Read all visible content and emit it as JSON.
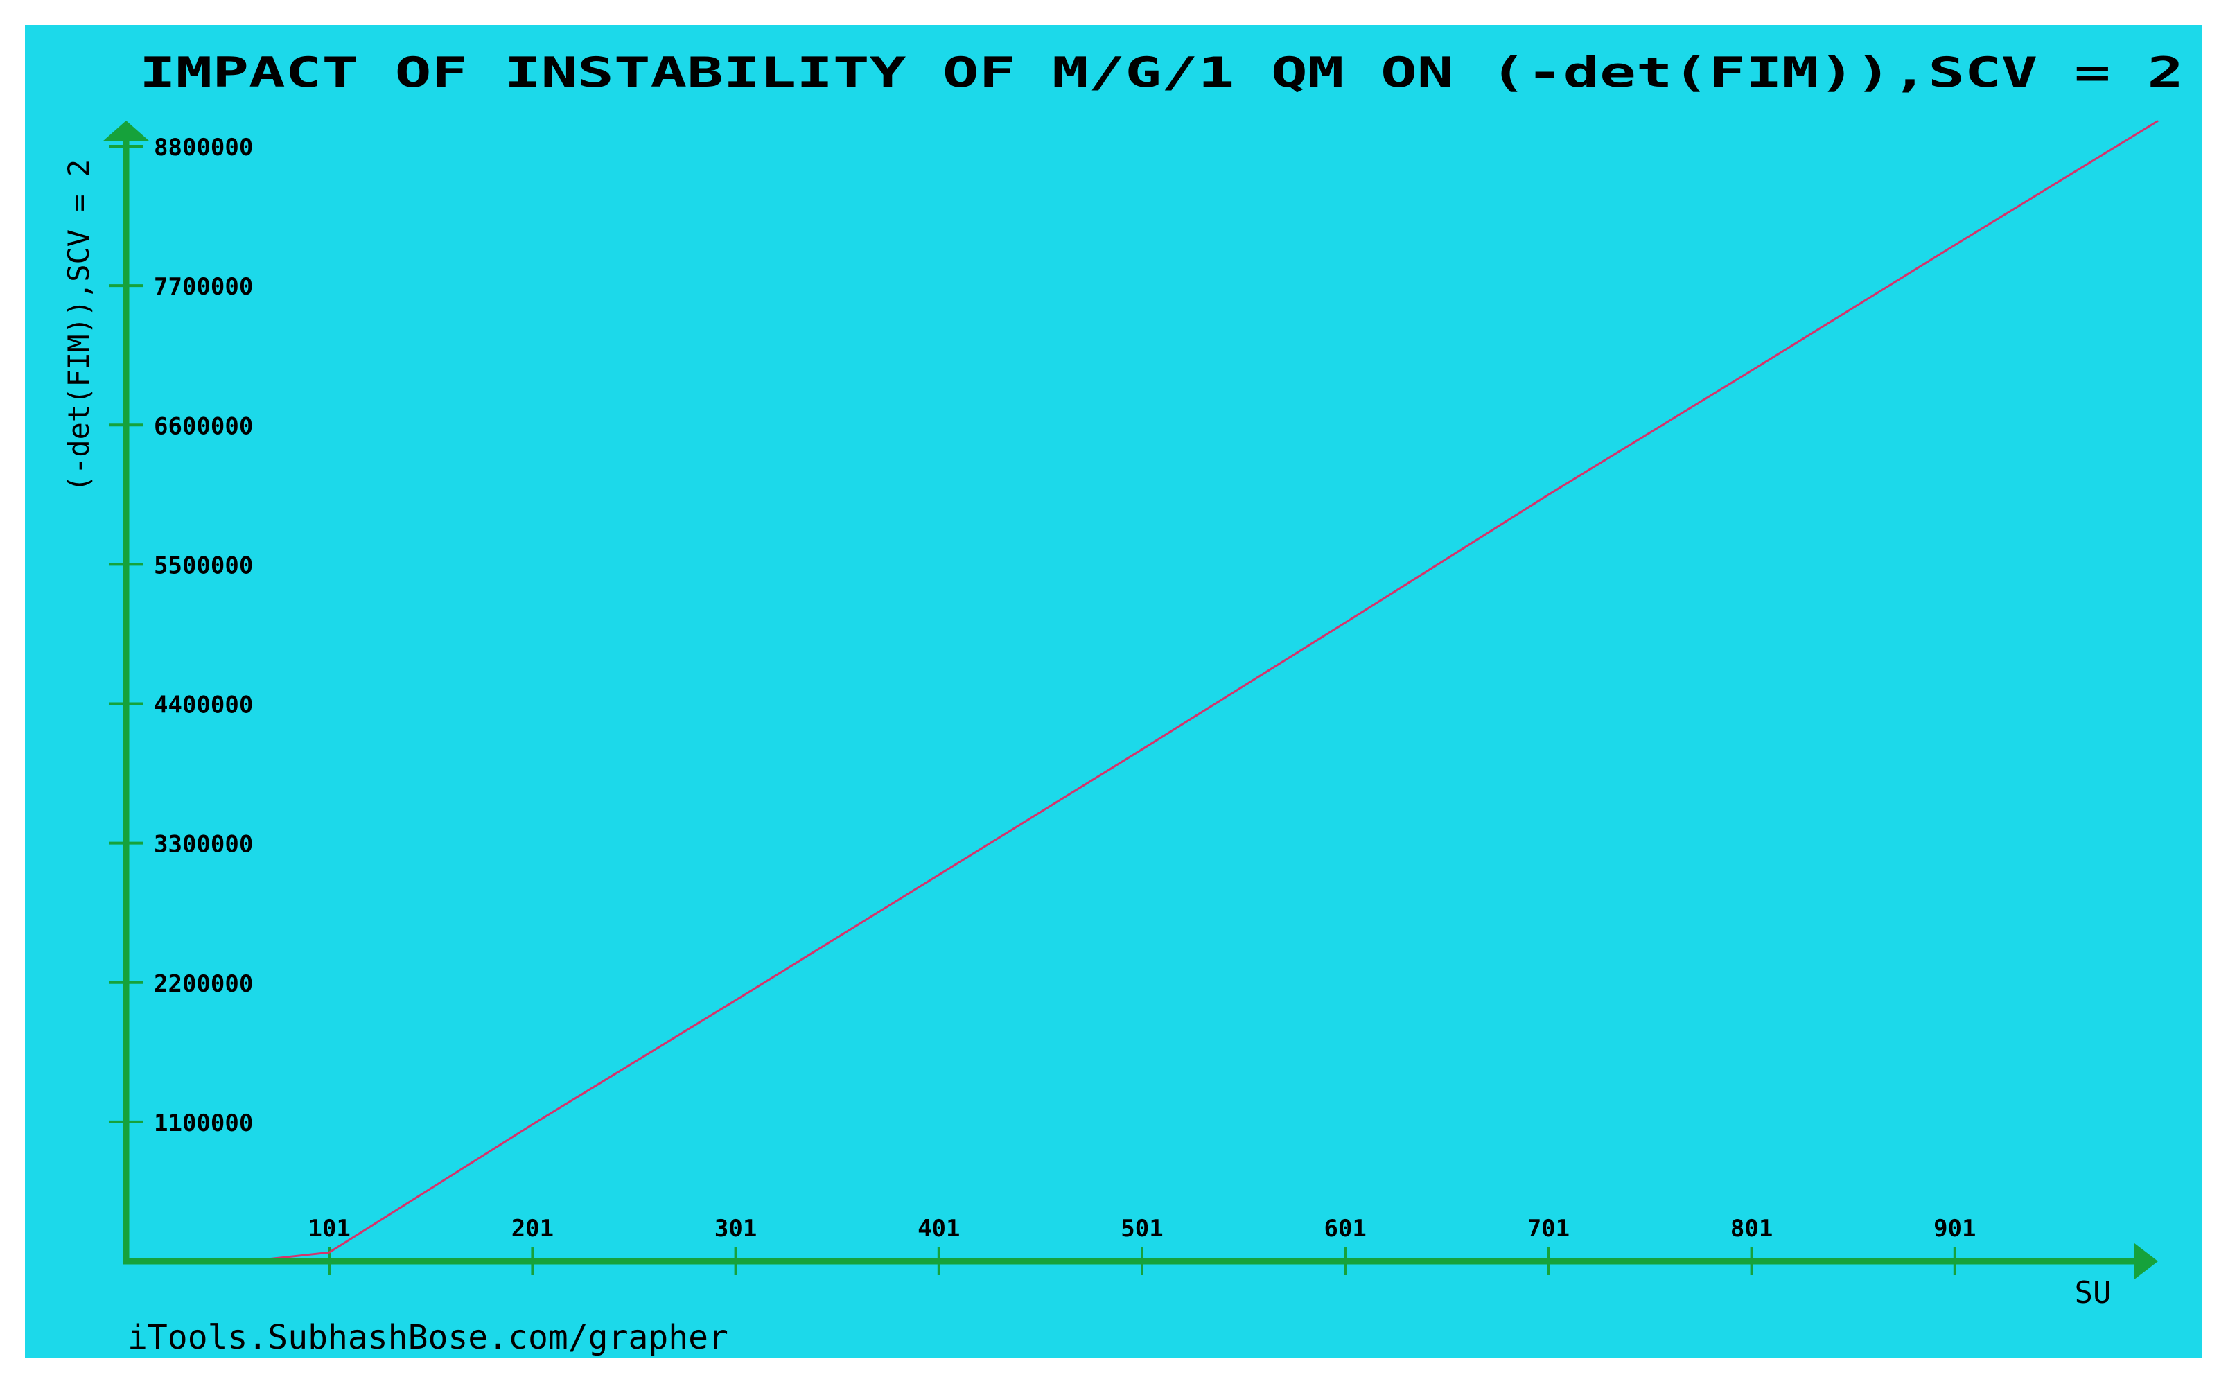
{
  "colors": {
    "page_background": "#ffffff",
    "plot_background": "#1cd9ea",
    "axis": "#16a23b",
    "line": "#d6336b",
    "text": "#000000"
  },
  "chart_data": {
    "type": "line",
    "title": "IMPACT OF INSTABILITY OF M/G/1 QM ON (-det(FIM)),SCV = 2",
    "xlabel": "SU",
    "ylabel": "(-det(FIM)),SCV = 2",
    "footer": "iTools.SubhashBose.com/grapher",
    "xlim": [
      1,
      1001
    ],
    "ylim": [
      0,
      8800000
    ],
    "x_ticks": [
      101,
      201,
      301,
      401,
      501,
      601,
      701,
      801,
      901
    ],
    "x_tick_labels": [
      "101",
      "201",
      "301",
      "401",
      "501",
      "601",
      "701",
      "801",
      "901"
    ],
    "y_ticks": [
      1100000,
      2200000,
      3300000,
      4400000,
      5500000,
      6600000,
      7700000,
      8800000
    ],
    "y_tick_labels": [
      "1100000",
      "2200000",
      "3300000",
      "4400000",
      "5500000",
      "6600000",
      "7700000",
      "8800000"
    ],
    "grid": false,
    "legend": "none",
    "series": [
      {
        "x": [
          1,
          61,
          101,
          201,
          301,
          401,
          501,
          601,
          701,
          801,
          901,
          1001
        ],
        "values": [
          0,
          0,
          70000,
          1080000,
          2060000,
          3050000,
          4040000,
          5040000,
          6050000,
          7030000,
          8020000,
          9000000
        ]
      }
    ]
  }
}
